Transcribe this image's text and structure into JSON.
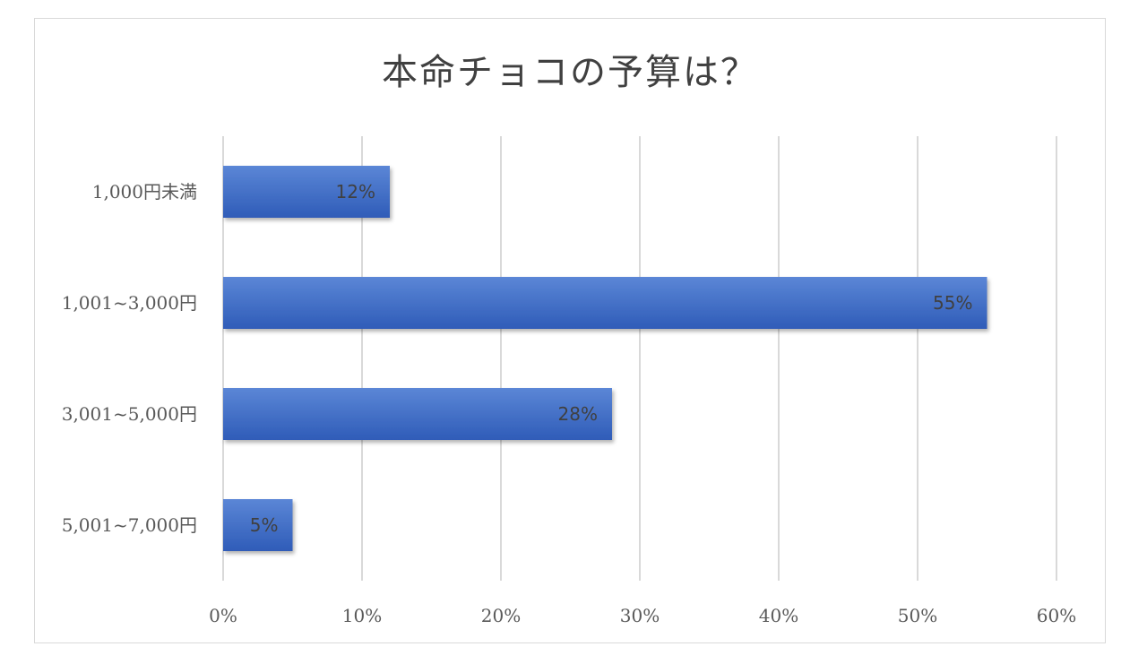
{
  "chart_data": {
    "type": "bar",
    "orientation": "horizontal",
    "title": "本命チョコの予算は？",
    "categories": [
      "1,000円未満",
      "1,001~3,000円",
      "3,001~5,000円",
      "5,001~7,000円"
    ],
    "values": [
      12,
      55,
      28,
      5
    ],
    "data_labels": [
      "12%",
      "55%",
      "28%",
      "5%"
    ],
    "xlim": [
      0,
      60
    ],
    "x_ticks": [
      0,
      10,
      20,
      30,
      40,
      50,
      60
    ],
    "x_tick_labels": [
      "0%",
      "10%",
      "20%",
      "30%",
      "40%",
      "50%",
      "60%"
    ],
    "grid": true,
    "legend": "none",
    "bar_color": "#4472c4"
  }
}
